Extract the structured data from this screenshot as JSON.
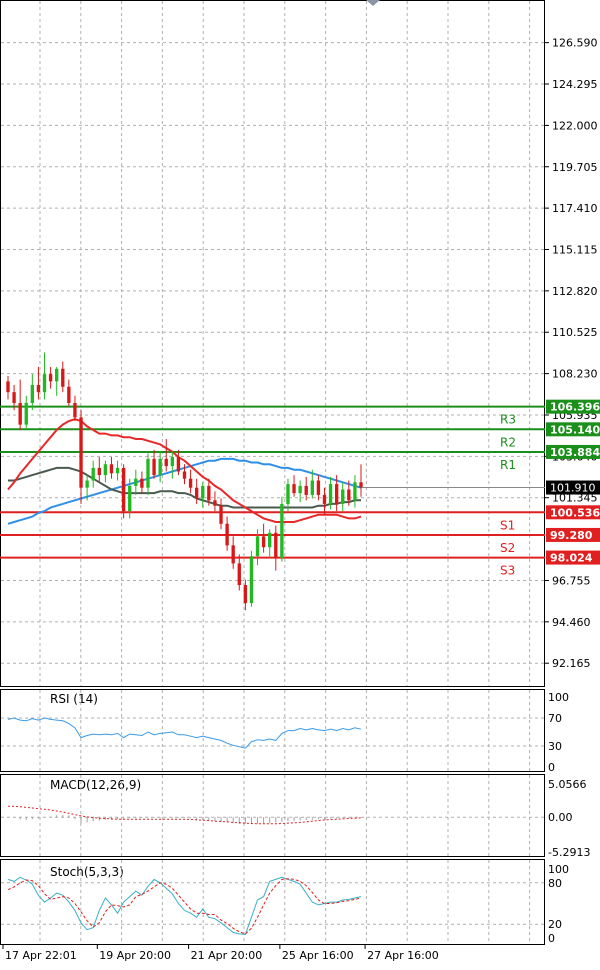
{
  "chart_data": [
    {
      "panel": "price",
      "type": "candlestick",
      "y_axis_ticks": [
        "126.590",
        "124.295",
        "122.000",
        "119.705",
        "117.410",
        "115.115",
        "112.820",
        "110.525",
        "108.230",
        "105.935",
        "103.640",
        "101.345",
        "96.755",
        "94.460",
        "92.165"
      ],
      "ylim": [
        90.9,
        128.9
      ],
      "current_price": "101.910",
      "levels": [
        {
          "value": 106.396,
          "text": "106.396",
          "name": "R3",
          "color": "#1a8f1a"
        },
        {
          "value": 105.14,
          "text": "105.140",
          "name": "R2",
          "color": "#1a8f1a"
        },
        {
          "value": 103.884,
          "text": "103.884",
          "name": "R1",
          "color": "#1a8f1a"
        },
        {
          "value": 100.536,
          "text": "100.536",
          "name": "S1",
          "color": "#e02020"
        },
        {
          "value": 99.28,
          "text": "99.280",
          "name": "S2",
          "color": "#e02020"
        },
        {
          "value": 98.024,
          "text": "98.024",
          "name": "S3",
          "color": "#e02020"
        }
      ],
      "candles": [
        [
          107.8,
          108.1,
          106.8,
          107.2
        ],
        [
          107.2,
          107.6,
          106.2,
          106.6
        ],
        [
          106.6,
          107.9,
          105.1,
          105.4
        ],
        [
          105.4,
          107.0,
          105.2,
          106.6
        ],
        [
          106.6,
          108.2,
          106.2,
          107.6
        ],
        [
          107.6,
          108.6,
          106.8,
          107.2
        ],
        [
          107.2,
          109.4,
          106.8,
          108.2
        ],
        [
          108.2,
          108.6,
          107.4,
          107.8
        ],
        [
          107.8,
          108.6,
          107.0,
          108.5
        ],
        [
          108.5,
          108.9,
          107.2,
          107.5
        ],
        [
          107.5,
          107.9,
          106.4,
          106.6
        ],
        [
          106.6,
          107.0,
          105.6,
          105.8
        ],
        [
          105.8,
          106.2,
          101.0,
          101.9
        ],
        [
          101.9,
          102.6,
          101.2,
          102.3
        ],
        [
          102.3,
          103.4,
          101.9,
          103.0
        ],
        [
          103.0,
          103.6,
          102.2,
          102.6
        ],
        [
          102.6,
          103.4,
          102.2,
          103.2
        ],
        [
          103.2,
          103.6,
          102.4,
          102.7
        ],
        [
          102.7,
          103.4,
          102.3,
          103.0
        ],
        [
          103.0,
          103.2,
          100.2,
          100.6
        ],
        [
          100.6,
          102.4,
          100.2,
          102.0
        ],
        [
          102.0,
          102.9,
          101.5,
          102.4
        ],
        [
          102.4,
          102.8,
          101.6,
          101.9
        ],
        [
          101.9,
          103.8,
          101.5,
          103.5
        ],
        [
          103.5,
          104.0,
          102.4,
          102.6
        ],
        [
          102.6,
          103.9,
          102.2,
          103.5
        ],
        [
          103.5,
          104.6,
          102.8,
          103.1
        ],
        [
          103.1,
          103.9,
          102.4,
          103.6
        ],
        [
          103.6,
          104.0,
          102.6,
          102.8
        ],
        [
          102.8,
          103.2,
          102.1,
          102.4
        ],
        [
          102.4,
          102.9,
          101.6,
          101.9
        ],
        [
          101.9,
          102.4,
          101.0,
          101.3
        ],
        [
          101.3,
          102.2,
          100.8,
          102.0
        ],
        [
          102.0,
          102.4,
          100.9,
          101.2
        ],
        [
          101.2,
          101.7,
          100.6,
          100.9
        ],
        [
          100.9,
          101.3,
          99.6,
          99.9
        ],
        [
          99.9,
          100.3,
          98.4,
          98.7
        ],
        [
          98.7,
          99.2,
          97.4,
          97.7
        ],
        [
          97.7,
          98.2,
          96.2,
          96.5
        ],
        [
          96.5,
          96.8,
          95.1,
          95.5
        ],
        [
          95.5,
          98.4,
          95.3,
          98.1
        ],
        [
          98.1,
          99.6,
          97.6,
          99.2
        ],
        [
          99.2,
          99.9,
          98.3,
          98.6
        ],
        [
          98.6,
          99.6,
          98.0,
          99.4
        ],
        [
          99.4,
          99.8,
          97.3,
          98.0
        ],
        [
          98.0,
          101.4,
          97.8,
          101.0
        ],
        [
          101.0,
          102.4,
          100.6,
          102.1
        ],
        [
          102.1,
          102.6,
          101.4,
          101.6
        ],
        [
          101.6,
          102.3,
          101.1,
          102.0
        ],
        [
          102.0,
          102.5,
          101.2,
          101.5
        ],
        [
          101.5,
          102.9,
          101.3,
          102.3
        ],
        [
          102.3,
          102.6,
          101.2,
          101.5
        ],
        [
          101.5,
          101.9,
          100.4,
          101.0
        ],
        [
          101.0,
          102.5,
          100.7,
          102.1
        ],
        [
          102.1,
          102.6,
          100.6,
          101.0
        ],
        [
          101.0,
          102.2,
          100.6,
          101.8
        ],
        [
          101.8,
          102.3,
          100.9,
          101.2
        ],
        [
          101.2,
          102.6,
          100.8,
          102.2
        ],
        [
          102.2,
          103.2,
          101.4,
          101.9
        ]
      ],
      "ma_red": [
        101.8,
        102.2,
        102.7,
        103.1,
        103.5,
        103.9,
        104.3,
        104.7,
        105.1,
        105.4,
        105.6,
        105.7,
        105.6,
        105.3,
        105.1,
        104.9,
        104.9,
        104.8,
        104.8,
        104.7,
        104.7,
        104.6,
        104.6,
        104.5,
        104.4,
        104.3,
        104.1,
        103.9,
        103.6,
        103.4,
        103.1,
        102.8,
        102.5,
        102.3,
        102.0,
        101.8,
        101.5,
        101.2,
        101.0,
        100.8,
        100.6,
        100.4,
        100.2,
        100.1,
        100.0,
        100.0,
        100.0,
        100.0,
        100.1,
        100.2,
        100.3,
        100.4,
        100.4,
        100.4,
        100.4,
        100.3,
        100.2,
        100.2,
        100.3
      ],
      "ma_gray": [
        102.3,
        102.3,
        102.4,
        102.5,
        102.6,
        102.7,
        102.8,
        102.9,
        103.0,
        103.0,
        103.0,
        102.9,
        102.8,
        102.6,
        102.4,
        102.2,
        102.0,
        101.8,
        101.7,
        101.6,
        101.6,
        101.6,
        101.6,
        101.6,
        101.6,
        101.7,
        101.7,
        101.7,
        101.6,
        101.6,
        101.5,
        101.3,
        101.2,
        101.1,
        101.0,
        100.9,
        100.9,
        100.8,
        100.8,
        100.8,
        100.8,
        100.8,
        100.8,
        100.8,
        100.8,
        100.8,
        100.8,
        100.8,
        100.8,
        100.8,
        100.8,
        100.9,
        100.9,
        101.0,
        101.0,
        101.1,
        101.1,
        101.2,
        101.2
      ],
      "ma_blue": [
        99.9,
        100.0,
        100.1,
        100.2,
        100.3,
        100.5,
        100.6,
        100.8,
        100.9,
        101.0,
        101.1,
        101.2,
        101.3,
        101.4,
        101.5,
        101.6,
        101.7,
        101.8,
        101.9,
        102.0,
        102.1,
        102.2,
        102.3,
        102.4,
        102.5,
        102.6,
        102.7,
        102.8,
        102.9,
        103.0,
        103.1,
        103.2,
        103.3,
        103.4,
        103.4,
        103.5,
        103.5,
        103.5,
        103.4,
        103.4,
        103.3,
        103.3,
        103.2,
        103.2,
        103.1,
        103.0,
        103.0,
        102.9,
        102.9,
        102.8,
        102.7,
        102.6,
        102.5,
        102.4,
        102.3,
        102.2,
        102.1,
        102.0,
        101.9
      ]
    },
    {
      "panel": "rsi",
      "type": "line",
      "title": "RSI (14)",
      "y_axis_ticks": [
        "100",
        "70",
        "30",
        "0"
      ],
      "ylim": [
        0,
        100
      ],
      "values": [
        68,
        70,
        67,
        66,
        69,
        67,
        70,
        68,
        67,
        66,
        62,
        56,
        42,
        45,
        47,
        46,
        47,
        46,
        48,
        42,
        47,
        46,
        45,
        50,
        46,
        48,
        49,
        50,
        46,
        46,
        44,
        42,
        44,
        42,
        40,
        38,
        34,
        31,
        29,
        27,
        36,
        39,
        38,
        40,
        38,
        48,
        52,
        52,
        55,
        53,
        55,
        53,
        52,
        54,
        52,
        55,
        53,
        56,
        54
      ]
    },
    {
      "panel": "macd",
      "type": "histogram+line",
      "title": "MACD(12,26,9)",
      "y_axis_ticks": [
        "5.0566",
        "0.00",
        "-5.2913"
      ],
      "ylim": [
        -5.2913,
        5.0566
      ],
      "histogram": [
        0.05,
        -0.1,
        -0.35,
        -0.4,
        -0.3,
        -0.2,
        0.05,
        0.1,
        0.3,
        0.35,
        0.3,
        -0.3,
        -0.9,
        -0.8,
        -0.6,
        -0.5,
        -0.4,
        -0.4,
        -0.3,
        -0.2,
        -0.2,
        -0.15,
        -0.1,
        -0.1,
        -0.1,
        -0.1,
        -0.1,
        -0.1,
        -0.1,
        -0.1,
        -0.2,
        -0.3,
        -0.4,
        -0.5,
        -0.6,
        -0.7,
        -0.8,
        -0.9,
        -1.0,
        -1.0,
        -1.0,
        -1.0,
        -0.9,
        -0.9,
        -0.8,
        -0.7,
        -0.6,
        -0.6,
        -0.5,
        -0.4,
        -0.4,
        -0.3,
        -0.3,
        -0.2,
        -0.2,
        -0.1,
        -0.1,
        -0.05,
        -0.05
      ],
      "signal": [
        1.7,
        1.65,
        1.6,
        1.5,
        1.4,
        1.3,
        1.2,
        1.1,
        0.95,
        0.8,
        0.6,
        0.4,
        0.2,
        0.05,
        -0.05,
        -0.15,
        -0.2,
        -0.25,
        -0.3,
        -0.3,
        -0.3,
        -0.3,
        -0.3,
        -0.3,
        -0.3,
        -0.3,
        -0.3,
        -0.3,
        -0.3,
        -0.3,
        -0.35,
        -0.4,
        -0.45,
        -0.5,
        -0.6,
        -0.65,
        -0.7,
        -0.8,
        -0.85,
        -0.9,
        -0.95,
        -1.0,
        -1.0,
        -1.0,
        -1.0,
        -0.95,
        -0.9,
        -0.85,
        -0.8,
        -0.7,
        -0.6,
        -0.5,
        -0.4,
        -0.35,
        -0.3,
        -0.25,
        -0.2,
        -0.15,
        -0.1
      ]
    },
    {
      "panel": "stoch",
      "type": "line",
      "title": "Stoch(5,3,3)",
      "y_axis_ticks": [
        "100",
        "80",
        "20",
        "0"
      ],
      "ylim": [
        0,
        100
      ],
      "k": [
        85,
        82,
        88,
        84,
        78,
        62,
        52,
        58,
        65,
        62,
        52,
        40,
        22,
        12,
        15,
        40,
        58,
        48,
        36,
        52,
        60,
        68,
        62,
        75,
        85,
        80,
        72,
        64,
        50,
        40,
        36,
        30,
        42,
        30,
        28,
        22,
        15,
        8,
        6,
        5,
        30,
        55,
        60,
        82,
        85,
        88,
        85,
        82,
        78,
        65,
        52,
        48,
        50,
        52,
        52,
        55,
        56,
        58,
        60
      ],
      "d": [
        70,
        74,
        80,
        84,
        83,
        76,
        64,
        56,
        58,
        60,
        58,
        50,
        38,
        25,
        16,
        22,
        38,
        48,
        47,
        45,
        48,
        60,
        63,
        68,
        74,
        80,
        78,
        72,
        62,
        52,
        42,
        36,
        36,
        34,
        34,
        26,
        21,
        14,
        9,
        6,
        14,
        30,
        48,
        65,
        76,
        85,
        86,
        85,
        82,
        76,
        66,
        55,
        50,
        50,
        51,
        53,
        54,
        56,
        58
      ]
    }
  ],
  "x_axis": {
    "labels": [
      "17 Apr 22:01",
      "19 Apr 20:00",
      "21 Apr 20:00",
      "25 Apr 16:00",
      "27 Apr 16:00"
    ],
    "label_candle_index": [
      0,
      15,
      30,
      45,
      59
    ]
  }
}
